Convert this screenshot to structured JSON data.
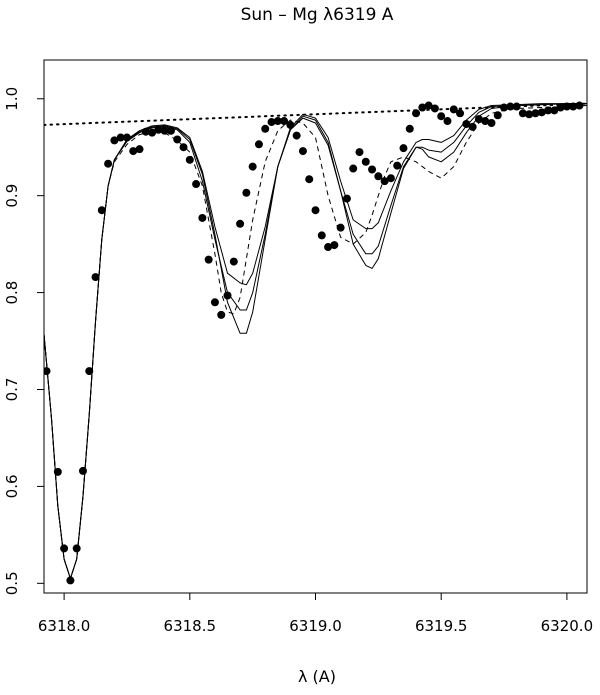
{
  "chart_data": {
    "type": "line",
    "title": "Sun – Mg λ6319 A",
    "xlabel": "λ (A)",
    "ylabel": "",
    "xlim": [
      6317.92,
      6320.08
    ],
    "ylim": [
      0.49,
      1.04
    ],
    "grid": false,
    "x_ticks": [
      6318.0,
      6318.5,
      6319.0,
      6319.5,
      6320.0
    ],
    "x_tick_labels": [
      "6318.0",
      "6318.5",
      "6319.0",
      "6319.5",
      "6320.0"
    ],
    "y_ticks": [
      0.5,
      0.6,
      0.7,
      0.8,
      0.9,
      1.0
    ],
    "y_tick_labels": [
      "0.5",
      "0.6",
      "0.7",
      "0.8",
      "0.9",
      "1.0"
    ],
    "continuum": {
      "x": [
        6317.92,
        6320.08
      ],
      "y": [
        0.973,
        0.995
      ]
    },
    "observed_points": {
      "x": [
        6317.93,
        6317.975,
        6318.0,
        6318.025,
        6318.05,
        6318.075,
        6318.1,
        6318.125,
        6318.15,
        6318.175,
        6318.2,
        6318.225,
        6318.25,
        6318.275,
        6318.3,
        6318.325,
        6318.35,
        6318.375,
        6318.4,
        6318.425,
        6318.45,
        6318.475,
        6318.5,
        6318.525,
        6318.55,
        6318.575,
        6318.6,
        6318.625,
        6318.65,
        6318.675,
        6318.7,
        6318.725,
        6318.75,
        6318.775,
        6318.8,
        6318.825,
        6318.85,
        6318.875,
        6318.9,
        6318.925,
        6318.95,
        6318.975,
        6319.0,
        6319.025,
        6319.05,
        6319.075,
        6319.1,
        6319.125,
        6319.15,
        6319.175,
        6319.2,
        6319.225,
        6319.25,
        6319.275,
        6319.3,
        6319.325,
        6319.35,
        6319.375,
        6319.4,
        6319.425,
        6319.45,
        6319.475,
        6319.5,
        6319.525,
        6319.55,
        6319.575,
        6319.6,
        6319.625,
        6319.65,
        6319.675,
        6319.7,
        6319.725,
        6319.75,
        6319.775,
        6319.8,
        6319.825,
        6319.85,
        6319.875,
        6319.9,
        6319.925,
        6319.95,
        6319.975,
        6320.0,
        6320.025,
        6320.05
      ],
      "y": [
        0.719,
        0.615,
        0.536,
        0.503,
        0.536,
        0.616,
        0.719,
        0.816,
        0.885,
        0.933,
        0.957,
        0.96,
        0.96,
        0.946,
        0.948,
        0.966,
        0.965,
        0.968,
        0.967,
        0.967,
        0.958,
        0.95,
        0.937,
        0.912,
        0.877,
        0.834,
        0.79,
        0.777,
        0.797,
        0.832,
        0.871,
        0.903,
        0.93,
        0.953,
        0.969,
        0.976,
        0.977,
        0.977,
        0.973,
        0.962,
        0.946,
        0.917,
        0.885,
        0.859,
        0.847,
        0.849,
        0.867,
        0.897,
        0.928,
        0.945,
        0.935,
        0.927,
        0.92,
        0.915,
        0.918,
        0.931,
        0.949,
        0.969,
        0.985,
        0.991,
        0.993,
        0.99,
        0.982,
        0.977,
        0.989,
        0.985,
        0.974,
        0.971,
        0.979,
        0.977,
        0.975,
        0.983,
        0.991,
        0.992,
        0.992,
        0.985,
        0.984,
        0.985,
        0.986,
        0.988,
        0.988,
        0.991,
        0.992,
        0.992,
        0.993
      ]
    },
    "dashed_fit": {
      "x": [
        6317.92,
        6317.95,
        6317.975,
        6318.0,
        6318.025,
        6318.05,
        6318.075,
        6318.1,
        6318.125,
        6318.15,
        6318.175,
        6318.2,
        6318.25,
        6318.3,
        6318.35,
        6318.4,
        6318.45,
        6318.5,
        6318.55,
        6318.6,
        6318.625,
        6318.65,
        6318.675,
        6318.7,
        6318.725,
        6318.75,
        6318.8,
        6318.85,
        6318.9,
        6318.95,
        6319.0,
        6319.05,
        6319.1,
        6319.15,
        6319.2,
        6319.225,
        6319.25,
        6319.275,
        6319.3,
        6319.35,
        6319.4,
        6319.45,
        6319.5,
        6319.55,
        6319.6,
        6319.65,
        6319.7,
        6319.75,
        6319.8,
        6319.9,
        6320.0,
        6320.08
      ],
      "y": [
        0.757,
        0.67,
        0.58,
        0.525,
        0.505,
        0.525,
        0.59,
        0.675,
        0.77,
        0.855,
        0.91,
        0.935,
        0.953,
        0.963,
        0.966,
        0.965,
        0.957,
        0.945,
        0.91,
        0.84,
        0.8,
        0.78,
        0.778,
        0.795,
        0.835,
        0.875,
        0.935,
        0.967,
        0.978,
        0.975,
        0.96,
        0.9,
        0.857,
        0.85,
        0.862,
        0.88,
        0.9,
        0.92,
        0.935,
        0.94,
        0.935,
        0.925,
        0.918,
        0.93,
        0.955,
        0.975,
        0.985,
        0.988,
        0.99,
        0.991,
        0.992,
        0.993
      ]
    },
    "series": [
      {
        "x": [
          6317.92,
          6317.95,
          6317.975,
          6318.0,
          6318.025,
          6318.05,
          6318.075,
          6318.1,
          6318.125,
          6318.15,
          6318.175,
          6318.2,
          6318.25,
          6318.3,
          6318.35,
          6318.4,
          6318.45,
          6318.5,
          6318.55,
          6318.6,
          6318.65,
          6318.7,
          6318.725,
          6318.75,
          6318.8,
          6318.85,
          6318.9,
          6318.95,
          6319.0,
          6319.05,
          6319.1,
          6319.15,
          6319.2,
          6319.225,
          6319.25,
          6319.3,
          6319.35,
          6319.4,
          6319.425,
          6319.45,
          6319.5,
          6319.55,
          6319.6,
          6319.65,
          6319.7,
          6319.8,
          6319.9,
          6320.0,
          6320.08
        ],
        "y": [
          0.757,
          0.67,
          0.58,
          0.525,
          0.505,
          0.525,
          0.59,
          0.675,
          0.77,
          0.855,
          0.91,
          0.937,
          0.956,
          0.965,
          0.97,
          0.971,
          0.968,
          0.955,
          0.915,
          0.855,
          0.8,
          0.782,
          0.782,
          0.8,
          0.86,
          0.93,
          0.968,
          0.98,
          0.975,
          0.952,
          0.905,
          0.86,
          0.84,
          0.84,
          0.848,
          0.89,
          0.93,
          0.95,
          0.948,
          0.94,
          0.935,
          0.945,
          0.965,
          0.982,
          0.99,
          0.993,
          0.994,
          0.995,
          0.995
        ]
      },
      {
        "x": [
          6317.92,
          6317.95,
          6317.975,
          6318.0,
          6318.025,
          6318.05,
          6318.075,
          6318.1,
          6318.125,
          6318.15,
          6318.175,
          6318.2,
          6318.25,
          6318.3,
          6318.35,
          6318.4,
          6318.45,
          6318.5,
          6318.55,
          6318.6,
          6318.65,
          6318.7,
          6318.725,
          6318.75,
          6318.8,
          6318.85,
          6318.9,
          6318.95,
          6319.0,
          6319.05,
          6319.1,
          6319.15,
          6319.2,
          6319.225,
          6319.25,
          6319.3,
          6319.35,
          6319.4,
          6319.425,
          6319.45,
          6319.5,
          6319.55,
          6319.6,
          6319.65,
          6319.7,
          6319.8,
          6319.9,
          6320.0,
          6320.08
        ],
        "y": [
          0.757,
          0.67,
          0.58,
          0.525,
          0.505,
          0.525,
          0.59,
          0.675,
          0.77,
          0.855,
          0.91,
          0.937,
          0.957,
          0.966,
          0.971,
          0.972,
          0.969,
          0.958,
          0.922,
          0.86,
          0.79,
          0.758,
          0.758,
          0.78,
          0.855,
          0.93,
          0.968,
          0.982,
          0.978,
          0.955,
          0.905,
          0.85,
          0.828,
          0.825,
          0.835,
          0.882,
          0.928,
          0.95,
          0.95,
          0.947,
          0.945,
          0.955,
          0.972,
          0.986,
          0.992,
          0.993,
          0.994,
          0.995,
          0.995
        ]
      },
      {
        "x": [
          6317.92,
          6317.95,
          6317.975,
          6318.0,
          6318.025,
          6318.05,
          6318.075,
          6318.1,
          6318.125,
          6318.15,
          6318.175,
          6318.2,
          6318.25,
          6318.3,
          6318.35,
          6318.4,
          6318.45,
          6318.5,
          6318.55,
          6318.6,
          6318.65,
          6318.7,
          6318.725,
          6318.75,
          6318.8,
          6318.85,
          6318.9,
          6318.95,
          6319.0,
          6319.05,
          6319.1,
          6319.15,
          6319.2,
          6319.225,
          6319.25,
          6319.3,
          6319.35,
          6319.4,
          6319.425,
          6319.45,
          6319.5,
          6319.55,
          6319.6,
          6319.65,
          6319.7,
          6319.8,
          6319.9,
          6320.0,
          6320.08
        ],
        "y": [
          0.757,
          0.67,
          0.58,
          0.525,
          0.505,
          0.525,
          0.59,
          0.675,
          0.77,
          0.855,
          0.91,
          0.937,
          0.958,
          0.967,
          0.972,
          0.973,
          0.97,
          0.96,
          0.925,
          0.868,
          0.82,
          0.81,
          0.808,
          0.82,
          0.868,
          0.93,
          0.97,
          0.984,
          0.98,
          0.96,
          0.915,
          0.875,
          0.866,
          0.866,
          0.872,
          0.905,
          0.935,
          0.955,
          0.958,
          0.958,
          0.955,
          0.962,
          0.978,
          0.989,
          0.993,
          0.994,
          0.995,
          0.995,
          0.995
        ]
      }
    ]
  }
}
